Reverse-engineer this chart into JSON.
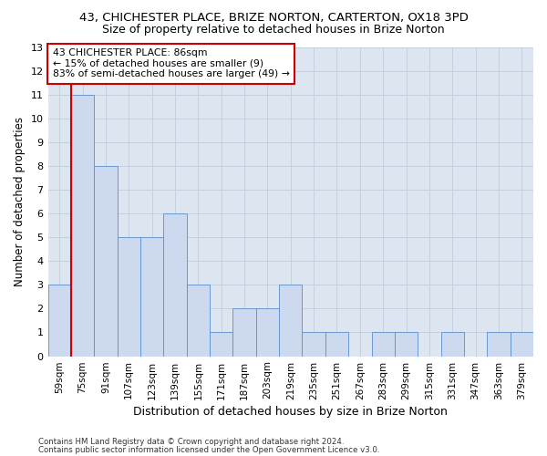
{
  "title1": "43, CHICHESTER PLACE, BRIZE NORTON, CARTERTON, OX18 3PD",
  "title2": "Size of property relative to detached houses in Brize Norton",
  "xlabel": "Distribution of detached houses by size in Brize Norton",
  "ylabel": "Number of detached properties",
  "footnote1": "Contains HM Land Registry data © Crown copyright and database right 2024.",
  "footnote2": "Contains public sector information licensed under the Open Government Licence v3.0.",
  "annotation_line1": "43 CHICHESTER PLACE: 86sqm",
  "annotation_line2": "← 15% of detached houses are smaller (9)",
  "annotation_line3": "83% of semi-detached houses are larger (49) →",
  "bar_labels": [
    "59sqm",
    "75sqm",
    "91sqm",
    "107sqm",
    "123sqm",
    "139sqm",
    "155sqm",
    "171sqm",
    "187sqm",
    "203sqm",
    "219sqm",
    "235sqm",
    "251sqm",
    "267sqm",
    "283sqm",
    "299sqm",
    "315sqm",
    "331sqm",
    "347sqm",
    "363sqm",
    "379sqm"
  ],
  "bar_values": [
    3,
    11,
    8,
    5,
    5,
    6,
    3,
    1,
    2,
    2,
    3,
    1,
    1,
    0,
    1,
    1,
    0,
    1,
    0,
    1,
    1
  ],
  "bar_color": "#ccd9ee",
  "bar_edge_color": "#5b8fc9",
  "vline_x": 0.5,
  "vline_color": "#cc0000",
  "annotation_box_color": "#ffffff",
  "annotation_box_edge": "#cc0000",
  "ylim": [
    0,
    13
  ],
  "yticks": [
    0,
    1,
    2,
    3,
    4,
    5,
    6,
    7,
    8,
    9,
    10,
    11,
    12,
    13
  ],
  "grid_color": "#c5cfe0",
  "bg_color": "#dde5f0",
  "title1_fontsize": 9.5,
  "title2_fontsize": 9.0,
  "ylabel_fontsize": 8.5,
  "xlabel_fontsize": 9.0,
  "annotation_fontsize": 7.8,
  "tick_fontsize": 8.0,
  "footnote_fontsize": 6.2
}
